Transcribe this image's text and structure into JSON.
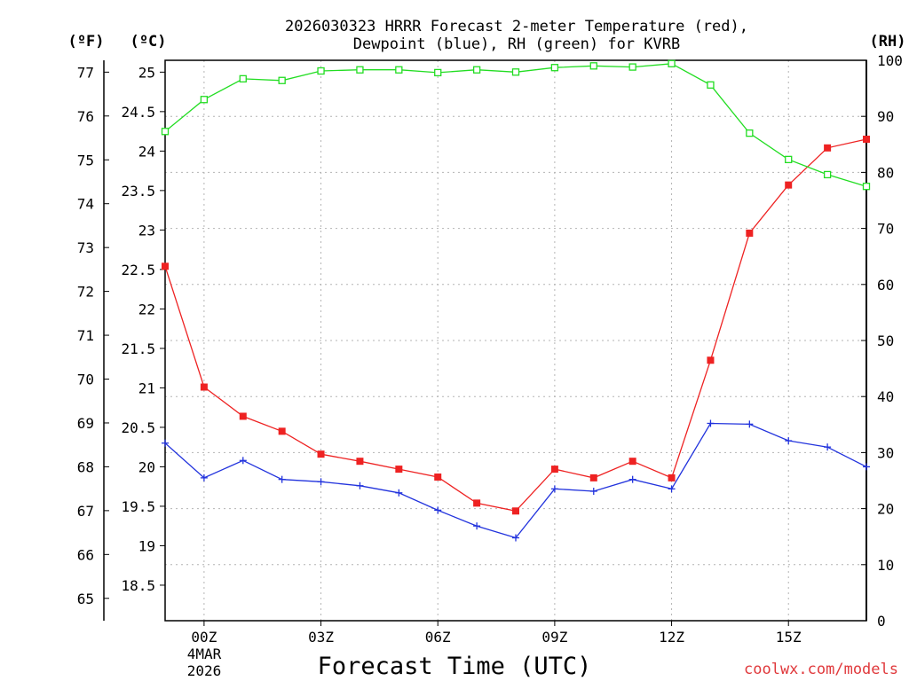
{
  "chart_data": {
    "type": "line",
    "title_lines": [
      "2026030323 HRRR Forecast 2-meter Temperature (red),",
      "Dewpoint (blue), RH (green) for KVRB"
    ],
    "xlabel": "Forecast Time (UTC)",
    "credit": "coolwx.com/models",
    "units": {
      "f": "(ºF)",
      "c": "(ºC)",
      "rh": "(RH)"
    },
    "date_label": [
      "4MAR",
      "2026"
    ],
    "x_hours": [
      -1,
      0,
      1,
      2,
      3,
      4,
      5,
      6,
      7,
      8,
      9,
      10,
      11,
      12,
      13,
      14,
      15,
      16,
      17
    ],
    "x_ticks": [
      {
        "hour": 0,
        "label": "00Z"
      },
      {
        "hour": 3,
        "label": "03Z"
      },
      {
        "hour": 6,
        "label": "06Z"
      },
      {
        "hour": 9,
        "label": "09Z"
      },
      {
        "hour": 12,
        "label": "12Z"
      },
      {
        "hour": 15,
        "label": "15Z"
      }
    ],
    "xlim": [
      -1,
      17
    ],
    "celsius_axis": {
      "lim": [
        18.05,
        25.15
      ],
      "ticks": [
        "18.5",
        "19",
        "19.5",
        "20",
        "20.5",
        "21",
        "21.5",
        "22",
        "22.5",
        "23",
        "23.5",
        "24",
        "24.5",
        "25"
      ]
    },
    "fahrenheit_axis": {
      "lim": [
        64.49,
        77.27
      ],
      "ticks": [
        "65",
        "66",
        "67",
        "68",
        "69",
        "70",
        "71",
        "72",
        "73",
        "74",
        "75",
        "76",
        "77"
      ]
    },
    "rh_axis": {
      "lim": [
        0,
        100
      ],
      "ticks": [
        "0",
        "10",
        "20",
        "30",
        "40",
        "50",
        "60",
        "70",
        "80",
        "90",
        "100"
      ]
    },
    "series": [
      {
        "name": "Temperature",
        "axis": "celsius",
        "color": "#ee2222",
        "marker": "filled-square",
        "values": [
          22.54,
          21.01,
          20.64,
          20.45,
          20.16,
          20.07,
          19.97,
          19.87,
          19.54,
          19.44,
          19.97,
          19.86,
          20.07,
          19.86,
          21.35,
          22.96,
          23.57,
          24.04,
          24.15
        ]
      },
      {
        "name": "Dewpoint",
        "axis": "celsius",
        "color": "#2233dd",
        "marker": "plus",
        "values": [
          20.3,
          19.86,
          20.08,
          19.84,
          19.81,
          19.76,
          19.67,
          19.45,
          19.25,
          19.1,
          19.72,
          19.69,
          19.84,
          19.72,
          20.55,
          20.54,
          20.33,
          20.25,
          20.0
        ]
      },
      {
        "name": "RH",
        "axis": "rh",
        "color": "#22dd22",
        "marker": "open-square",
        "values": [
          87.3,
          93.0,
          96.7,
          96.4,
          98.1,
          98.3,
          98.3,
          97.8,
          98.3,
          97.9,
          98.7,
          99.0,
          98.8,
          99.4,
          95.6,
          87.0,
          82.3,
          79.6,
          77.5
        ]
      }
    ],
    "grid": true
  }
}
